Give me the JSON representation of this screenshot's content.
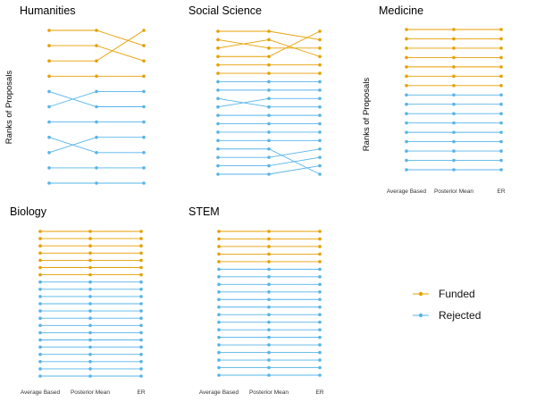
{
  "chart_data": {
    "type": "line",
    "x": [
      "Average Based",
      "Posterior Mean",
      "ER"
    ],
    "ylabel": "Ranks of Proposals",
    "ylabel_note": "ranks on reversed axis; rank 1 drawn at top",
    "legend": {
      "position": "bottom-right",
      "entries": [
        {
          "key": "funded",
          "label": "Funded",
          "color": "#E69F00"
        },
        {
          "key": "rejected",
          "label": "Rejected",
          "color": "#56B4E9"
        }
      ]
    },
    "panels": [
      {
        "title": "Humanities",
        "show_ylabel": true,
        "show_xlabels": false,
        "n_ranks": 11,
        "series": [
          {
            "status": "funded",
            "ranks": [
              1,
              1,
              2
            ]
          },
          {
            "status": "funded",
            "ranks": [
              2,
              2,
              3
            ]
          },
          {
            "status": "funded",
            "ranks": [
              3,
              3,
              1
            ]
          },
          {
            "status": "funded",
            "ranks": [
              4,
              4,
              4
            ]
          },
          {
            "status": "rejected",
            "ranks": [
              5,
              6,
              6
            ]
          },
          {
            "status": "rejected",
            "ranks": [
              6,
              5,
              5
            ]
          },
          {
            "status": "rejected",
            "ranks": [
              7,
              7,
              7
            ]
          },
          {
            "status": "rejected",
            "ranks": [
              8,
              9,
              9
            ]
          },
          {
            "status": "rejected",
            "ranks": [
              9,
              8,
              8
            ]
          },
          {
            "status": "rejected",
            "ranks": [
              10,
              10,
              10
            ]
          },
          {
            "status": "rejected",
            "ranks": [
              11,
              11,
              11
            ]
          }
        ]
      },
      {
        "title": "Social Science",
        "show_ylabel": false,
        "show_xlabels": false,
        "n_ranks": 18,
        "series": [
          {
            "status": "funded",
            "ranks": [
              1,
              1,
              2
            ]
          },
          {
            "status": "funded",
            "ranks": [
              2,
              3,
              3
            ]
          },
          {
            "status": "funded",
            "ranks": [
              3,
              2,
              4
            ]
          },
          {
            "status": "funded",
            "ranks": [
              4,
              4,
              1
            ]
          },
          {
            "status": "funded",
            "ranks": [
              5,
              5,
              5
            ]
          },
          {
            "status": "funded",
            "ranks": [
              6,
              6,
              6
            ]
          },
          {
            "status": "rejected",
            "ranks": [
              7,
              7,
              7
            ]
          },
          {
            "status": "rejected",
            "ranks": [
              8,
              8,
              8
            ]
          },
          {
            "status": "rejected",
            "ranks": [
              9,
              10,
              10
            ]
          },
          {
            "status": "rejected",
            "ranks": [
              10,
              9,
              9
            ]
          },
          {
            "status": "rejected",
            "ranks": [
              11,
              11,
              11
            ]
          },
          {
            "status": "rejected",
            "ranks": [
              12,
              12,
              12
            ]
          },
          {
            "status": "rejected",
            "ranks": [
              13,
              13,
              13
            ]
          },
          {
            "status": "rejected",
            "ranks": [
              14,
              14,
              14
            ]
          },
          {
            "status": "rejected",
            "ranks": [
              15,
              15,
              18
            ]
          },
          {
            "status": "rejected",
            "ranks": [
              16,
              16,
              15
            ]
          },
          {
            "status": "rejected",
            "ranks": [
              17,
              17,
              16
            ]
          },
          {
            "status": "rejected",
            "ranks": [
              18,
              18,
              17
            ]
          }
        ]
      },
      {
        "title": "Medicine",
        "show_ylabel": true,
        "show_xlabels": true,
        "n_ranks": 16,
        "series": [
          {
            "status": "funded",
            "ranks": [
              1,
              1,
              1
            ]
          },
          {
            "status": "funded",
            "ranks": [
              2,
              2,
              2
            ]
          },
          {
            "status": "funded",
            "ranks": [
              3,
              3,
              3
            ]
          },
          {
            "status": "funded",
            "ranks": [
              4,
              4,
              4
            ]
          },
          {
            "status": "funded",
            "ranks": [
              5,
              5,
              5
            ]
          },
          {
            "status": "funded",
            "ranks": [
              6,
              6,
              6
            ]
          },
          {
            "status": "funded",
            "ranks": [
              7,
              7,
              7
            ]
          },
          {
            "status": "rejected",
            "ranks": [
              8,
              8,
              8
            ]
          },
          {
            "status": "rejected",
            "ranks": [
              9,
              9,
              9
            ]
          },
          {
            "status": "rejected",
            "ranks": [
              10,
              10,
              10
            ]
          },
          {
            "status": "rejected",
            "ranks": [
              11,
              11,
              11
            ]
          },
          {
            "status": "rejected",
            "ranks": [
              12,
              12,
              12
            ]
          },
          {
            "status": "rejected",
            "ranks": [
              13,
              13,
              13
            ]
          },
          {
            "status": "rejected",
            "ranks": [
              14,
              14,
              14
            ]
          },
          {
            "status": "rejected",
            "ranks": [
              15,
              15,
              15
            ]
          },
          {
            "status": "rejected",
            "ranks": [
              16,
              16,
              16
            ]
          }
        ]
      },
      {
        "title": "Biology",
        "show_ylabel": false,
        "show_xlabels": true,
        "n_ranks": 21,
        "series": [
          {
            "status": "funded",
            "ranks": [
              1,
              1,
              1
            ]
          },
          {
            "status": "funded",
            "ranks": [
              2,
              2,
              2
            ]
          },
          {
            "status": "funded",
            "ranks": [
              3,
              3,
              3
            ]
          },
          {
            "status": "funded",
            "ranks": [
              4,
              4,
              4
            ]
          },
          {
            "status": "funded",
            "ranks": [
              5,
              5,
              5
            ]
          },
          {
            "status": "funded",
            "ranks": [
              6,
              6,
              6
            ]
          },
          {
            "status": "funded",
            "ranks": [
              7,
              7,
              7
            ]
          },
          {
            "status": "rejected",
            "ranks": [
              8,
              8,
              8
            ]
          },
          {
            "status": "rejected",
            "ranks": [
              9,
              9,
              9
            ]
          },
          {
            "status": "rejected",
            "ranks": [
              10,
              10,
              10
            ]
          },
          {
            "status": "rejected",
            "ranks": [
              11,
              11,
              11
            ]
          },
          {
            "status": "rejected",
            "ranks": [
              12,
              12,
              12
            ]
          },
          {
            "status": "rejected",
            "ranks": [
              13,
              13,
              13
            ]
          },
          {
            "status": "rejected",
            "ranks": [
              14,
              14,
              14
            ]
          },
          {
            "status": "rejected",
            "ranks": [
              15,
              15,
              15
            ]
          },
          {
            "status": "rejected",
            "ranks": [
              16,
              16,
              16
            ]
          },
          {
            "status": "rejected",
            "ranks": [
              17,
              17,
              17
            ]
          },
          {
            "status": "rejected",
            "ranks": [
              18,
              18,
              18
            ]
          },
          {
            "status": "rejected",
            "ranks": [
              19,
              19,
              19
            ]
          },
          {
            "status": "rejected",
            "ranks": [
              20,
              20,
              20
            ]
          },
          {
            "status": "rejected",
            "ranks": [
              21,
              21,
              21
            ]
          }
        ]
      },
      {
        "title": "STEM",
        "show_ylabel": false,
        "show_xlabels": true,
        "n_ranks": 20,
        "series": [
          {
            "status": "funded",
            "ranks": [
              1,
              1,
              1
            ]
          },
          {
            "status": "funded",
            "ranks": [
              2,
              2,
              2
            ]
          },
          {
            "status": "funded",
            "ranks": [
              3,
              3,
              3
            ]
          },
          {
            "status": "funded",
            "ranks": [
              4,
              4,
              4
            ]
          },
          {
            "status": "funded",
            "ranks": [
              5,
              5,
              5
            ]
          },
          {
            "status": "rejected",
            "ranks": [
              6,
              6,
              6
            ]
          },
          {
            "status": "rejected",
            "ranks": [
              7,
              7,
              7
            ]
          },
          {
            "status": "rejected",
            "ranks": [
              8,
              8,
              8
            ]
          },
          {
            "status": "rejected",
            "ranks": [
              9,
              9,
              9
            ]
          },
          {
            "status": "rejected",
            "ranks": [
              10,
              10,
              10
            ]
          },
          {
            "status": "rejected",
            "ranks": [
              11,
              11,
              11
            ]
          },
          {
            "status": "rejected",
            "ranks": [
              12,
              12,
              12
            ]
          },
          {
            "status": "rejected",
            "ranks": [
              13,
              13,
              13
            ]
          },
          {
            "status": "rejected",
            "ranks": [
              14,
              14,
              14
            ]
          },
          {
            "status": "rejected",
            "ranks": [
              15,
              15,
              15
            ]
          },
          {
            "status": "rejected",
            "ranks": [
              16,
              16,
              16
            ]
          },
          {
            "status": "rejected",
            "ranks": [
              17,
              17,
              17
            ]
          },
          {
            "status": "rejected",
            "ranks": [
              18,
              18,
              18
            ]
          },
          {
            "status": "rejected",
            "ranks": [
              19,
              19,
              19
            ]
          },
          {
            "status": "rejected",
            "ranks": [
              20,
              20,
              20
            ]
          }
        ]
      }
    ]
  }
}
